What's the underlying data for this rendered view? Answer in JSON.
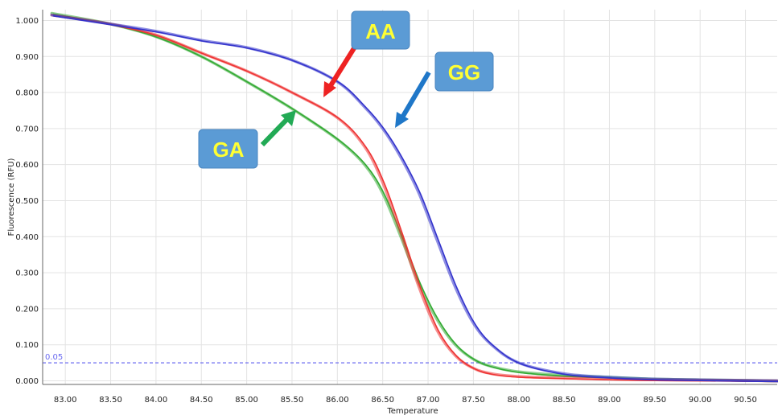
{
  "chart_data": {
    "type": "line",
    "xlabel": "Temperature",
    "ylabel": "Fluorescence (RFU)",
    "xlim": [
      82.75,
      90.85
    ],
    "ylim": [
      -0.01,
      1.03
    ],
    "x_ticks": [
      "83.00",
      "83.50",
      "84.00",
      "84.50",
      "85.00",
      "85.50",
      "86.00",
      "86.50",
      "87.00",
      "87.50",
      "88.00",
      "88.50",
      "89.00",
      "89.50",
      "90.00",
      "90.50"
    ],
    "y_ticks": [
      "0.000",
      "0.100",
      "0.200",
      "0.300",
      "0.400",
      "0.500",
      "0.600",
      "0.700",
      "0.800",
      "0.900",
      "1.000"
    ],
    "grid": true,
    "threshold": {
      "label": "0.05",
      "value": 0.05,
      "color": "#6a6af0"
    },
    "series": [
      {
        "name": "GA",
        "color": "#33aa33",
        "x": [
          82.85,
          83.5,
          84.0,
          84.5,
          85.0,
          85.5,
          86.0,
          86.3,
          86.5,
          86.7,
          86.9,
          87.1,
          87.3,
          87.5,
          87.7,
          88.0,
          88.5,
          89.0,
          89.5,
          90.0,
          90.85
        ],
        "y": [
          1.02,
          0.99,
          0.955,
          0.9,
          0.83,
          0.755,
          0.67,
          0.6,
          0.52,
          0.4,
          0.27,
          0.17,
          0.1,
          0.06,
          0.04,
          0.025,
          0.015,
          0.01,
          0.005,
          0.003,
          0.0
        ]
      },
      {
        "name": "AA",
        "color": "#ee3333",
        "x": [
          82.85,
          83.5,
          84.0,
          84.5,
          85.0,
          85.5,
          86.0,
          86.3,
          86.5,
          86.7,
          86.9,
          87.1,
          87.3,
          87.5,
          87.7,
          88.0,
          88.5,
          89.0,
          89.5,
          90.0,
          90.85
        ],
        "y": [
          1.015,
          0.99,
          0.96,
          0.91,
          0.86,
          0.8,
          0.73,
          0.65,
          0.55,
          0.41,
          0.26,
          0.14,
          0.07,
          0.035,
          0.02,
          0.012,
          0.008,
          0.005,
          0.003,
          0.002,
          0.0
        ]
      },
      {
        "name": "GG",
        "color": "#3333cc",
        "x": [
          82.85,
          83.5,
          84.0,
          84.5,
          85.0,
          85.5,
          86.0,
          86.3,
          86.5,
          86.7,
          86.9,
          87.1,
          87.3,
          87.5,
          87.7,
          88.0,
          88.5,
          89.0,
          89.5,
          90.0,
          90.85
        ],
        "y": [
          1.015,
          0.99,
          0.97,
          0.945,
          0.925,
          0.89,
          0.83,
          0.76,
          0.7,
          0.62,
          0.52,
          0.39,
          0.26,
          0.16,
          0.1,
          0.05,
          0.02,
          0.01,
          0.005,
          0.003,
          0.0
        ]
      }
    ],
    "annotations": [
      {
        "text": "AA",
        "color": "#ee2222"
      },
      {
        "text": "GG",
        "color": "#1f77c8"
      },
      {
        "text": "GA",
        "color": "#22aa55"
      }
    ]
  }
}
